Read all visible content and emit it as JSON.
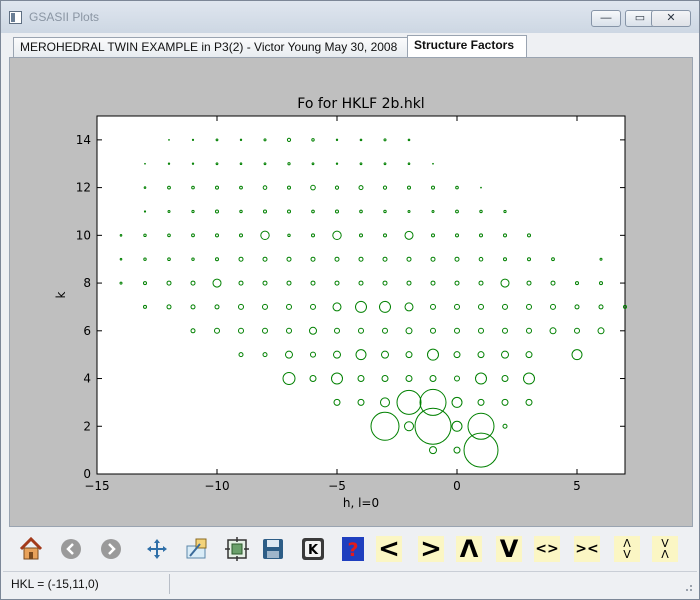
{
  "window": {
    "title": "GSASII Plots",
    "minimize_label": "—",
    "maximize_label": "▭",
    "close_label": "✕"
  },
  "tabs": [
    {
      "label": "MEROHEDRAL TWIN EXAMPLE in P3(2) - Victor Young May 30, 2008",
      "active": false
    },
    {
      "label": "Structure Factors",
      "active": true
    }
  ],
  "chart_data": {
    "type": "scatter",
    "title": "Fo for HKLF 2b.hkl",
    "xlabel": "h, l=0",
    "ylabel": "k",
    "xlim": [
      -15,
      7
    ],
    "ylim": [
      0,
      15
    ],
    "xticks": [
      -15,
      -10,
      -5,
      0,
      5
    ],
    "xtick_labels": [
      "−15",
      "−10",
      "−5",
      "0",
      "5"
    ],
    "yticks": [
      0,
      2,
      4,
      6,
      8,
      10,
      12,
      14
    ],
    "yticks_labels": [
      "0",
      "2",
      "4",
      "6",
      "8",
      "10",
      "12",
      "14"
    ],
    "marker_color": "#008000",
    "marker": "open circle, size proportional to Fo",
    "points": [
      {
        "h": -12,
        "k": 14,
        "s": 0.4
      },
      {
        "h": -11,
        "k": 14,
        "s": 0.6
      },
      {
        "h": -10,
        "k": 14,
        "s": 0.9
      },
      {
        "h": -9,
        "k": 14,
        "s": 0.7
      },
      {
        "h": -8,
        "k": 14,
        "s": 1.0
      },
      {
        "h": -7,
        "k": 14,
        "s": 1.6
      },
      {
        "h": -6,
        "k": 14,
        "s": 1.2
      },
      {
        "h": -5,
        "k": 14,
        "s": 0.7
      },
      {
        "h": -4,
        "k": 14,
        "s": 0.8
      },
      {
        "h": -3,
        "k": 14,
        "s": 1.0
      },
      {
        "h": -2,
        "k": 14,
        "s": 0.8
      },
      {
        "h": -13,
        "k": 13,
        "s": 0.4
      },
      {
        "h": -12,
        "k": 13,
        "s": 0.7
      },
      {
        "h": -11,
        "k": 13,
        "s": 0.7
      },
      {
        "h": -10,
        "k": 13,
        "s": 0.9
      },
      {
        "h": -9,
        "k": 13,
        "s": 0.8
      },
      {
        "h": -8,
        "k": 13,
        "s": 0.9
      },
      {
        "h": -7,
        "k": 13,
        "s": 1.1
      },
      {
        "h": -6,
        "k": 13,
        "s": 0.9
      },
      {
        "h": -5,
        "k": 13,
        "s": 0.7
      },
      {
        "h": -4,
        "k": 13,
        "s": 0.9
      },
      {
        "h": -3,
        "k": 13,
        "s": 0.9
      },
      {
        "h": -2,
        "k": 13,
        "s": 0.8
      },
      {
        "h": -1,
        "k": 13,
        "s": 0.4
      },
      {
        "h": -13,
        "k": 12,
        "s": 0.8
      },
      {
        "h": -12,
        "k": 12,
        "s": 1.4
      },
      {
        "h": -11,
        "k": 12,
        "s": 1.3
      },
      {
        "h": -10,
        "k": 12,
        "s": 1.5
      },
      {
        "h": -9,
        "k": 12,
        "s": 1.4
      },
      {
        "h": -8,
        "k": 12,
        "s": 1.8
      },
      {
        "h": -7,
        "k": 12,
        "s": 1.5
      },
      {
        "h": -6,
        "k": 12,
        "s": 2.3
      },
      {
        "h": -5,
        "k": 12,
        "s": 1.6
      },
      {
        "h": -4,
        "k": 12,
        "s": 2.0
      },
      {
        "h": -3,
        "k": 12,
        "s": 1.6
      },
      {
        "h": -2,
        "k": 12,
        "s": 1.5
      },
      {
        "h": -1,
        "k": 12,
        "s": 1.5
      },
      {
        "h": 0,
        "k": 12,
        "s": 1.3
      },
      {
        "h": 1,
        "k": 12,
        "s": 0.4
      },
      {
        "h": -13,
        "k": 11,
        "s": 0.6
      },
      {
        "h": -12,
        "k": 11,
        "s": 1.0
      },
      {
        "h": -11,
        "k": 11,
        "s": 1.1
      },
      {
        "h": -10,
        "k": 11,
        "s": 1.5
      },
      {
        "h": -9,
        "k": 11,
        "s": 1.2
      },
      {
        "h": -8,
        "k": 11,
        "s": 1.5
      },
      {
        "h": -7,
        "k": 11,
        "s": 1.5
      },
      {
        "h": -6,
        "k": 11,
        "s": 1.3
      },
      {
        "h": -5,
        "k": 11,
        "s": 1.5
      },
      {
        "h": -4,
        "k": 11,
        "s": 1.3
      },
      {
        "h": -3,
        "k": 11,
        "s": 1.2
      },
      {
        "h": -2,
        "k": 11,
        "s": 1.0
      },
      {
        "h": -1,
        "k": 11,
        "s": 1.0
      },
      {
        "h": 0,
        "k": 11,
        "s": 1.4
      },
      {
        "h": 1,
        "k": 11,
        "s": 1.2
      },
      {
        "h": 2,
        "k": 11,
        "s": 1.1
      },
      {
        "h": -14,
        "k": 10,
        "s": 0.8
      },
      {
        "h": -13,
        "k": 10,
        "s": 1.2
      },
      {
        "h": -12,
        "k": 10,
        "s": 1.3
      },
      {
        "h": -11,
        "k": 10,
        "s": 1.4
      },
      {
        "h": -10,
        "k": 10,
        "s": 1.5
      },
      {
        "h": -9,
        "k": 10,
        "s": 1.5
      },
      {
        "h": -8,
        "k": 10,
        "s": 4.2
      },
      {
        "h": -7,
        "k": 10,
        "s": 1.2
      },
      {
        "h": -6,
        "k": 10,
        "s": 1.5
      },
      {
        "h": -5,
        "k": 10,
        "s": 4.2
      },
      {
        "h": -4,
        "k": 10,
        "s": 1.5
      },
      {
        "h": -3,
        "k": 10,
        "s": 1.5
      },
      {
        "h": -2,
        "k": 10,
        "s": 4.0
      },
      {
        "h": -1,
        "k": 10,
        "s": 1.5
      },
      {
        "h": 0,
        "k": 10,
        "s": 1.5
      },
      {
        "h": 1,
        "k": 10,
        "s": 1.5
      },
      {
        "h": 2,
        "k": 10,
        "s": 1.5
      },
      {
        "h": 3,
        "k": 10,
        "s": 1.5
      },
      {
        "h": -14,
        "k": 9,
        "s": 0.8
      },
      {
        "h": -13,
        "k": 9,
        "s": 1.2
      },
      {
        "h": -12,
        "k": 9,
        "s": 1.3
      },
      {
        "h": -11,
        "k": 9,
        "s": 1.2
      },
      {
        "h": -10,
        "k": 9,
        "s": 1.5
      },
      {
        "h": -9,
        "k": 9,
        "s": 2.0
      },
      {
        "h": -8,
        "k": 9,
        "s": 2.0
      },
      {
        "h": -7,
        "k": 9,
        "s": 2.0
      },
      {
        "h": -6,
        "k": 9,
        "s": 2.0
      },
      {
        "h": -5,
        "k": 9,
        "s": 2.0
      },
      {
        "h": -4,
        "k": 9,
        "s": 2.0
      },
      {
        "h": -3,
        "k": 9,
        "s": 2.0
      },
      {
        "h": -2,
        "k": 9,
        "s": 2.0
      },
      {
        "h": -1,
        "k": 9,
        "s": 2.0
      },
      {
        "h": 0,
        "k": 9,
        "s": 2.0
      },
      {
        "h": 1,
        "k": 9,
        "s": 1.8
      },
      {
        "h": 2,
        "k": 9,
        "s": 1.5
      },
      {
        "h": 3,
        "k": 9,
        "s": 1.5
      },
      {
        "h": 4,
        "k": 9,
        "s": 1.4
      },
      {
        "h": 6,
        "k": 9,
        "s": 1.0
      },
      {
        "h": -14,
        "k": 8,
        "s": 1.0
      },
      {
        "h": -13,
        "k": 8,
        "s": 1.5
      },
      {
        "h": -12,
        "k": 8,
        "s": 2.0
      },
      {
        "h": -11,
        "k": 8,
        "s": 2.0
      },
      {
        "h": -10,
        "k": 8,
        "s": 4.0
      },
      {
        "h": -9,
        "k": 8,
        "s": 2.0
      },
      {
        "h": -8,
        "k": 8,
        "s": 2.0
      },
      {
        "h": -7,
        "k": 8,
        "s": 2.0
      },
      {
        "h": -6,
        "k": 8,
        "s": 2.0
      },
      {
        "h": -5,
        "k": 8,
        "s": 2.0
      },
      {
        "h": -4,
        "k": 8,
        "s": 2.0
      },
      {
        "h": -3,
        "k": 8,
        "s": 2.0
      },
      {
        "h": -2,
        "k": 8,
        "s": 2.0
      },
      {
        "h": -1,
        "k": 8,
        "s": 2.0
      },
      {
        "h": 0,
        "k": 8,
        "s": 2.0
      },
      {
        "h": 1,
        "k": 8,
        "s": 2.0
      },
      {
        "h": 2,
        "k": 8,
        "s": 4.0
      },
      {
        "h": 3,
        "k": 8,
        "s": 2.0
      },
      {
        "h": 4,
        "k": 8,
        "s": 2.0
      },
      {
        "h": 5,
        "k": 8,
        "s": 1.5
      },
      {
        "h": 6,
        "k": 8,
        "s": 1.5
      },
      {
        "h": -13,
        "k": 7,
        "s": 1.5
      },
      {
        "h": -12,
        "k": 7,
        "s": 2.0
      },
      {
        "h": -11,
        "k": 7,
        "s": 2.0
      },
      {
        "h": -10,
        "k": 7,
        "s": 2.0
      },
      {
        "h": -9,
        "k": 7,
        "s": 2.5
      },
      {
        "h": -8,
        "k": 7,
        "s": 2.5
      },
      {
        "h": -7,
        "k": 7,
        "s": 2.5
      },
      {
        "h": -6,
        "k": 7,
        "s": 2.5
      },
      {
        "h": -5,
        "k": 7,
        "s": 4.0
      },
      {
        "h": -4,
        "k": 7,
        "s": 5.5
      },
      {
        "h": -3,
        "k": 7,
        "s": 5.5
      },
      {
        "h": -2,
        "k": 7,
        "s": 4.0
      },
      {
        "h": -1,
        "k": 7,
        "s": 2.5
      },
      {
        "h": 0,
        "k": 7,
        "s": 2.5
      },
      {
        "h": 1,
        "k": 7,
        "s": 2.5
      },
      {
        "h": 2,
        "k": 7,
        "s": 2.5
      },
      {
        "h": 3,
        "k": 7,
        "s": 2.5
      },
      {
        "h": 4,
        "k": 7,
        "s": 2.5
      },
      {
        "h": 5,
        "k": 7,
        "s": 2.0
      },
      {
        "h": 6,
        "k": 7,
        "s": 2.0
      },
      {
        "h": 7,
        "k": 7,
        "s": 1.5
      },
      {
        "h": -11,
        "k": 6,
        "s": 2.0
      },
      {
        "h": -10,
        "k": 6,
        "s": 2.5
      },
      {
        "h": -9,
        "k": 6,
        "s": 2.5
      },
      {
        "h": -8,
        "k": 6,
        "s": 2.5
      },
      {
        "h": -7,
        "k": 6,
        "s": 2.5
      },
      {
        "h": -6,
        "k": 6,
        "s": 3.5
      },
      {
        "h": -5,
        "k": 6,
        "s": 2.5
      },
      {
        "h": -4,
        "k": 6,
        "s": 2.5
      },
      {
        "h": -3,
        "k": 6,
        "s": 2.5
      },
      {
        "h": -2,
        "k": 6,
        "s": 3.0
      },
      {
        "h": -1,
        "k": 6,
        "s": 2.5
      },
      {
        "h": 0,
        "k": 6,
        "s": 2.5
      },
      {
        "h": 1,
        "k": 6,
        "s": 2.5
      },
      {
        "h": 2,
        "k": 6,
        "s": 2.5
      },
      {
        "h": 3,
        "k": 6,
        "s": 2.5
      },
      {
        "h": 4,
        "k": 6,
        "s": 3.0
      },
      {
        "h": 5,
        "k": 6,
        "s": 2.5
      },
      {
        "h": 6,
        "k": 6,
        "s": 3.0
      },
      {
        "h": -9,
        "k": 5,
        "s": 2.0
      },
      {
        "h": -8,
        "k": 5,
        "s": 2.0
      },
      {
        "h": -7,
        "k": 5,
        "s": 3.5
      },
      {
        "h": -6,
        "k": 5,
        "s": 2.5
      },
      {
        "h": -5,
        "k": 5,
        "s": 3.5
      },
      {
        "h": -4,
        "k": 5,
        "s": 5.0
      },
      {
        "h": -3,
        "k": 5,
        "s": 3.5
      },
      {
        "h": -2,
        "k": 5,
        "s": 3.0
      },
      {
        "h": -1,
        "k": 5,
        "s": 5.5
      },
      {
        "h": 0,
        "k": 5,
        "s": 3.0
      },
      {
        "h": 1,
        "k": 5,
        "s": 3.0
      },
      {
        "h": 2,
        "k": 5,
        "s": 3.5
      },
      {
        "h": 3,
        "k": 5,
        "s": 3.0
      },
      {
        "h": 5,
        "k": 5,
        "s": 5.0
      },
      {
        "h": -7,
        "k": 4,
        "s": 6.0
      },
      {
        "h": -6,
        "k": 4,
        "s": 3.0
      },
      {
        "h": -5,
        "k": 4,
        "s": 5.5
      },
      {
        "h": -4,
        "k": 4,
        "s": 3.0
      },
      {
        "h": -3,
        "k": 4,
        "s": 3.0
      },
      {
        "h": -2,
        "k": 4,
        "s": 3.0
      },
      {
        "h": -1,
        "k": 4,
        "s": 3.0
      },
      {
        "h": 0,
        "k": 4,
        "s": 2.5
      },
      {
        "h": 1,
        "k": 4,
        "s": 5.5
      },
      {
        "h": 2,
        "k": 4,
        "s": 3.0
      },
      {
        "h": 3,
        "k": 4,
        "s": 5.5
      },
      {
        "h": -5,
        "k": 3,
        "s": 3.0
      },
      {
        "h": -4,
        "k": 3,
        "s": 3.0
      },
      {
        "h": -3,
        "k": 3,
        "s": 4.5
      },
      {
        "h": -2,
        "k": 3,
        "s": 12.0
      },
      {
        "h": -1,
        "k": 3,
        "s": 13.0
      },
      {
        "h": 0,
        "k": 3,
        "s": 5.0
      },
      {
        "h": 1,
        "k": 3,
        "s": 3.0
      },
      {
        "h": 2,
        "k": 3,
        "s": 3.0
      },
      {
        "h": 3,
        "k": 3,
        "s": 3.0
      },
      {
        "h": -3,
        "k": 2,
        "s": 14.0
      },
      {
        "h": -2,
        "k": 2,
        "s": 4.5
      },
      {
        "h": -1,
        "k": 2,
        "s": 18.0
      },
      {
        "h": 0,
        "k": 2,
        "s": 5.0
      },
      {
        "h": 1,
        "k": 2,
        "s": 13.0
      },
      {
        "h": 2,
        "k": 2,
        "s": 2.0
      },
      {
        "h": -1,
        "k": 1,
        "s": 3.5
      },
      {
        "h": 0,
        "k": 1,
        "s": 3.0
      },
      {
        "h": 1,
        "k": 1,
        "s": 17.0
      }
    ]
  },
  "toolbar": {
    "items": [
      {
        "name": "home-icon",
        "kind": "home"
      },
      {
        "name": "back-icon",
        "kind": "back"
      },
      {
        "name": "forward-icon",
        "kind": "forward"
      },
      {
        "name": "pan-icon",
        "kind": "pan"
      },
      {
        "name": "zoom-rect-icon",
        "kind": "zoom"
      },
      {
        "name": "subplots-icon",
        "kind": "subplots"
      },
      {
        "name": "save-icon",
        "kind": "save"
      },
      {
        "name": "k-key-icon",
        "kind": "k",
        "text": "K"
      },
      {
        "name": "help-icon",
        "kind": "help",
        "text": "?"
      },
      {
        "name": "less-than-icon",
        "kind": "glyph",
        "text": "<",
        "size": 26
      },
      {
        "name": "greater-than-icon",
        "kind": "glyph",
        "text": ">",
        "size": 26
      },
      {
        "name": "caret-up-icon",
        "kind": "glyph",
        "text": "Λ",
        "size": 24
      },
      {
        "name": "caret-down-icon",
        "kind": "glyph",
        "text": "V",
        "size": 24
      },
      {
        "name": "spread-horizontal-icon",
        "kind": "glyph",
        "text": "<>",
        "size": 14
      },
      {
        "name": "converge-horizontal-icon",
        "kind": "glyph",
        "text": "><",
        "size": 14
      },
      {
        "name": "spread-vertical-icon",
        "kind": "vglyph",
        "top": "Λ",
        "bottom": "V"
      },
      {
        "name": "converge-vertical-icon",
        "kind": "vglyph",
        "top": "V",
        "bottom": "Λ"
      }
    ]
  },
  "status": {
    "text": "HKL = (-15,11,0)"
  }
}
